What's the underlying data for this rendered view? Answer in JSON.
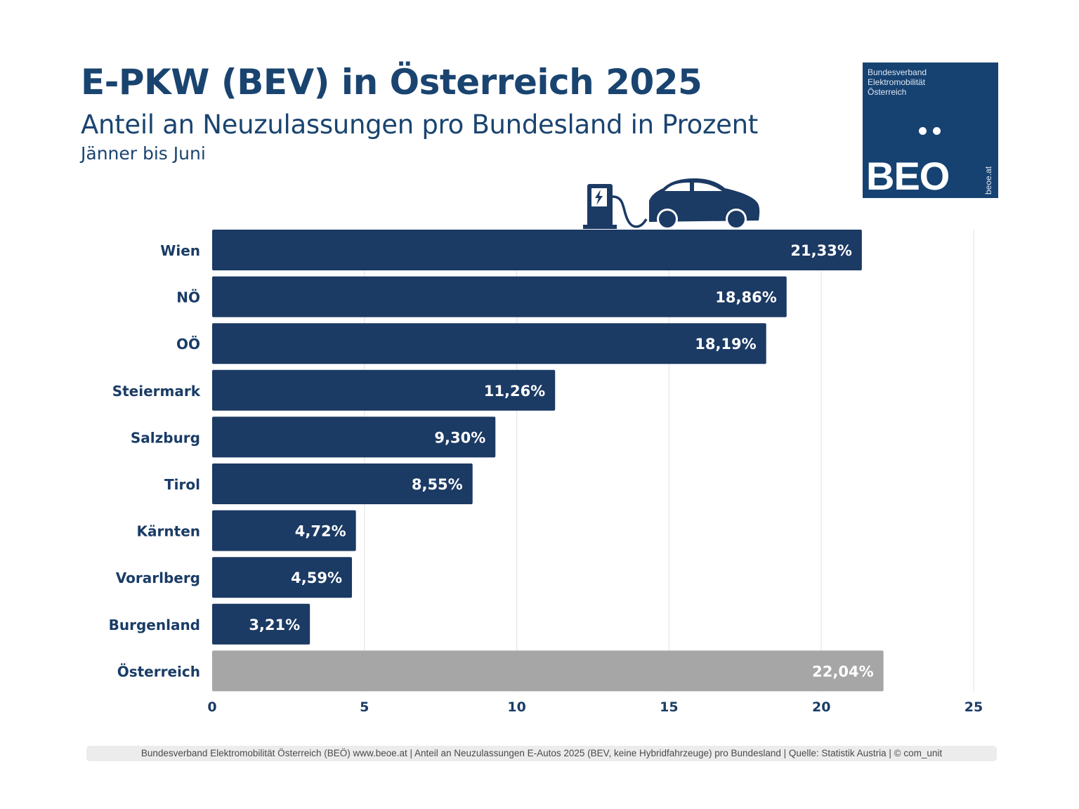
{
  "header": {
    "title": "E-PKW (BEV) in Österreich 2025",
    "subtitle": "Anteil an Neuzulassungen pro Bundesland in Prozent",
    "period": "Jänner bis Juni"
  },
  "logo": {
    "org_line1": "Bundesverband",
    "org_line2": "Elektromobilität",
    "org_line3": "Österreich",
    "mark": "BEO",
    "url": "beoe.at",
    "color": "#164272"
  },
  "illustration": {
    "icon": "ev-charging-car-icon"
  },
  "chart_data": {
    "type": "bar",
    "orientation": "horizontal",
    "title": "E-PKW (BEV) in Österreich 2025",
    "subtitle": "Anteil an Neuzulassungen pro Bundesland in Prozent",
    "xlabel": "",
    "ylabel": "",
    "xlim": [
      0,
      25
    ],
    "xticks": [
      0,
      5,
      10,
      15,
      20,
      25
    ],
    "grid": true,
    "categories": [
      "Wien",
      "NÖ",
      "OÖ",
      "Steiermark",
      "Salzburg",
      "Tirol",
      "Kärnten",
      "Vorarlberg",
      "Burgenland",
      "Österreich"
    ],
    "values": [
      21.33,
      18.86,
      18.19,
      11.26,
      9.3,
      8.55,
      4.72,
      4.59,
      3.21,
      22.04
    ],
    "labels": [
      "21,33%",
      "18,86%",
      "18,19%",
      "11,26%",
      "9,30%",
      "8,55%",
      "4,72%",
      "4,59%",
      "3,21%",
      "22,04%"
    ],
    "colors": {
      "bundesland": "#1b3a64",
      "total": "#a6a6a6",
      "axis_text": "#1a3c66",
      "grid": "#e1e1e1"
    }
  },
  "footer": {
    "text": "Bundesverband Elektromobilität Österreich (BEÖ) www.beoe.at | Anteil an Neuzulassungen E-Autos 2025 (BEV, keine Hybridfahrzeuge) pro Bundesland | Quelle: Statistik Austria | © com_unit"
  }
}
